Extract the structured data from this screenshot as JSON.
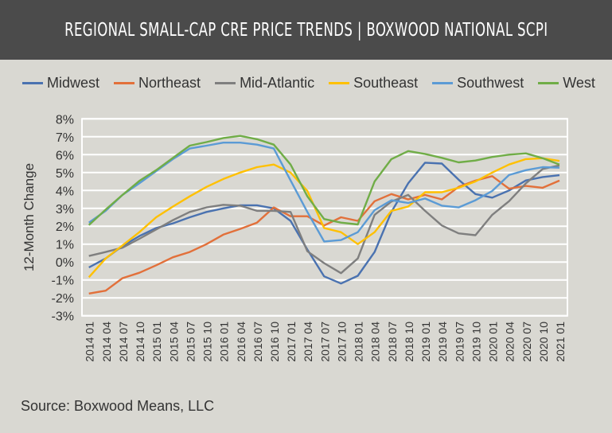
{
  "header": {
    "title": "REGIONAL SMALL-CAP CRE PRICE TRENDS | BOXWOOD NATIONAL SCPI"
  },
  "source": "Source: Boxwood Means, LLC",
  "colors": {
    "background": "#d9d8d2",
    "header": "#4b4b4b",
    "grid": "#ffffff"
  },
  "chart_data": {
    "type": "line",
    "title": "",
    "xlabel": "",
    "ylabel": "12-Month Change",
    "ylim": [
      -3,
      8
    ],
    "yticks": [
      "-3%",
      "-2%",
      "-1%",
      "0%",
      "1%",
      "2%",
      "3%",
      "4%",
      "5%",
      "6%",
      "7%",
      "8%"
    ],
    "grid": true,
    "legend": "top",
    "x": [
      "2014 01",
      "2014 04",
      "2014 07",
      "2014 10",
      "2015 01",
      "2015 04",
      "2015 07",
      "2015 10",
      "2016 01",
      "2016 04",
      "2016 07",
      "2016 10",
      "2017 01",
      "2017 04",
      "2017 07",
      "2017 10",
      "2018 01",
      "2018 04",
      "2018 07",
      "2018 10",
      "2019 01",
      "2019 04",
      "2019 07",
      "2019 10",
      "2020 01",
      "2020 04",
      "2020 07",
      "2020 10",
      "2021 01"
    ],
    "series": [
      {
        "name": "Midwest",
        "color": "#4a72b0",
        "values": [
          -0.3,
          0.2,
          0.9,
          1.45,
          1.9,
          2.16,
          2.5,
          2.8,
          3.0,
          3.17,
          3.17,
          3.0,
          2.3,
          0.7,
          -0.8,
          -1.2,
          -0.77,
          0.56,
          2.8,
          4.4,
          5.55,
          5.5,
          4.6,
          3.8,
          3.6,
          4.0,
          4.56,
          4.75,
          4.85
        ]
      },
      {
        "name": "Northeast",
        "color": "#e2703a",
        "values": [
          -1.76,
          -1.6,
          -0.9,
          -0.6,
          -0.18,
          0.27,
          0.56,
          1.0,
          1.53,
          1.85,
          2.2,
          3.05,
          2.56,
          2.56,
          2.04,
          2.5,
          2.3,
          3.4,
          3.8,
          3.5,
          3.75,
          3.5,
          4.2,
          4.55,
          4.8,
          4.1,
          4.25,
          4.15,
          4.55
        ]
      },
      {
        "name": "Mid-Atlantic",
        "color": "#7f7f7f",
        "values": [
          0.34,
          0.56,
          0.8,
          1.3,
          1.82,
          2.34,
          2.8,
          3.05,
          3.2,
          3.15,
          2.86,
          2.86,
          2.8,
          0.6,
          -0.06,
          -0.62,
          0.2,
          2.64,
          3.38,
          3.75,
          2.86,
          2.04,
          1.6,
          1.5,
          2.64,
          3.4,
          4.4,
          5.2,
          5.4
        ]
      },
      {
        "name": "Southeast",
        "color": "#ffc000",
        "values": [
          -0.85,
          0.2,
          0.93,
          1.67,
          2.5,
          3.1,
          3.67,
          4.2,
          4.64,
          5.0,
          5.3,
          5.45,
          5.0,
          3.97,
          1.9,
          1.67,
          1.0,
          1.67,
          2.86,
          3.1,
          3.9,
          3.9,
          4.15,
          4.5,
          5.0,
          5.45,
          5.75,
          5.8,
          5.65
        ]
      },
      {
        "name": "Southwest",
        "color": "#5b9bd5",
        "values": [
          2.2,
          2.86,
          3.75,
          4.4,
          5.08,
          5.75,
          6.34,
          6.5,
          6.67,
          6.67,
          6.56,
          6.34,
          4.56,
          2.8,
          1.15,
          1.23,
          1.67,
          2.9,
          3.45,
          3.3,
          3.55,
          3.15,
          3.05,
          3.45,
          3.97,
          4.86,
          5.13,
          5.3,
          5.27
        ]
      },
      {
        "name": "West",
        "color": "#70ad47",
        "values": [
          2.07,
          2.93,
          3.75,
          4.53,
          5.13,
          5.82,
          6.5,
          6.7,
          6.93,
          7.05,
          6.86,
          6.56,
          5.45,
          3.67,
          2.4,
          2.2,
          2.1,
          4.5,
          5.75,
          6.2,
          6.04,
          5.82,
          5.57,
          5.67,
          5.87,
          6.0,
          6.07,
          5.8,
          5.45
        ]
      }
    ]
  }
}
